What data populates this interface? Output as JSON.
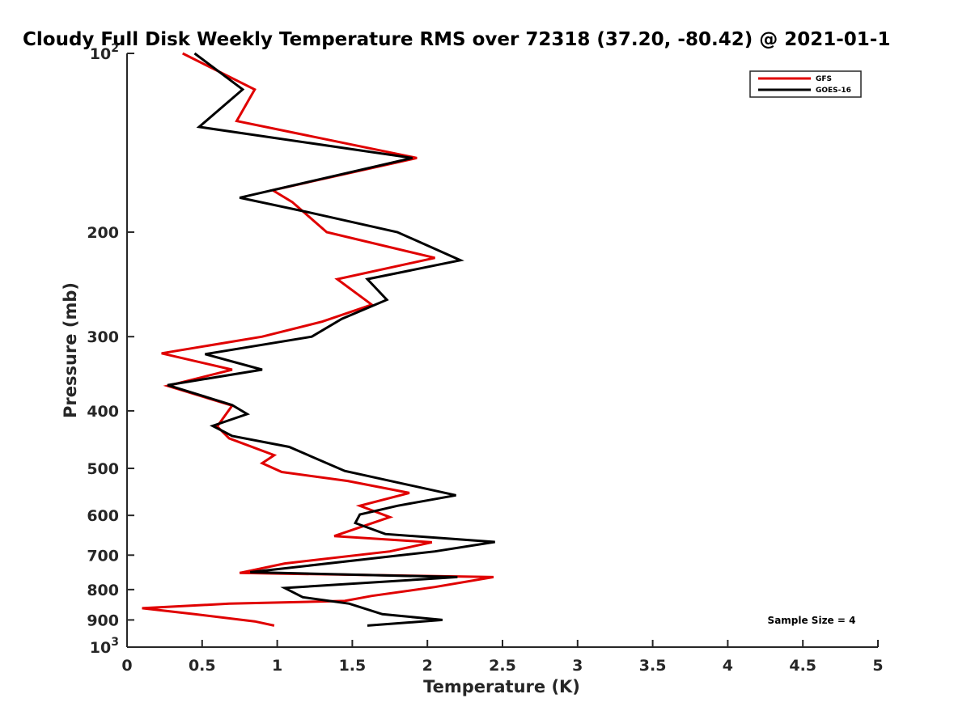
{
  "chart_data": {
    "type": "line",
    "title": "Cloudy Full Disk Weekly Temperature RMS over 72318 (37.20, -80.42) @ 2021-01-1",
    "xlabel": "Temperature (K)",
    "ylabel": "Pressure (mb)",
    "xlim": [
      0,
      5
    ],
    "ylim": [
      100,
      1000
    ],
    "y_scale": "log",
    "y_reversed": true,
    "grid": false,
    "legend_position": "top-right",
    "x_ticks": [
      0,
      0.5,
      1,
      1.5,
      2,
      2.5,
      3,
      3.5,
      4,
      4.5,
      5
    ],
    "x_tick_labels": [
      "0",
      "0.5",
      "1",
      "1.5",
      "2",
      "2.5",
      "3",
      "3.5",
      "4",
      "4.5",
      "5"
    ],
    "y_ticks": [
      {
        "value": 100,
        "base": "10",
        "exp": "2"
      },
      {
        "value": 200,
        "label": "200"
      },
      {
        "value": 300,
        "label": "300"
      },
      {
        "value": 400,
        "label": "400"
      },
      {
        "value": 500,
        "label": "500"
      },
      {
        "value": 600,
        "label": "600"
      },
      {
        "value": 700,
        "label": "700"
      },
      {
        "value": 800,
        "label": "800"
      },
      {
        "value": 900,
        "label": "900"
      },
      {
        "value": 1000,
        "base": "10",
        "exp": "3"
      }
    ],
    "series": [
      {
        "name": "GFS",
        "color": "#e00000",
        "points": [
          [
            0.37,
            100
          ],
          [
            0.85,
            115
          ],
          [
            0.73,
            130
          ],
          [
            1.93,
            150
          ],
          [
            0.97,
            170
          ],
          [
            1.1,
            178
          ],
          [
            1.33,
            200
          ],
          [
            2.05,
            221
          ],
          [
            1.4,
            240
          ],
          [
            1.63,
            265
          ],
          [
            1.3,
            283
          ],
          [
            0.9,
            300
          ],
          [
            0.23,
            320
          ],
          [
            0.7,
            341
          ],
          [
            0.27,
            363
          ],
          [
            0.7,
            392
          ],
          [
            0.6,
            425
          ],
          [
            0.68,
            445
          ],
          [
            0.98,
            475
          ],
          [
            0.9,
            490
          ],
          [
            1.03,
            507
          ],
          [
            1.47,
            525
          ],
          [
            1.88,
            550
          ],
          [
            1.55,
            578
          ],
          [
            1.75,
            604
          ],
          [
            1.38,
            650
          ],
          [
            2.03,
            666
          ],
          [
            1.75,
            690
          ],
          [
            1.05,
            723
          ],
          [
            0.75,
            750
          ],
          [
            2.44,
            762
          ],
          [
            2.05,
            792
          ],
          [
            1.63,
            820
          ],
          [
            1.45,
            836
          ],
          [
            0.68,
            845
          ],
          [
            0.1,
            860
          ],
          [
            0.45,
            880
          ],
          [
            0.85,
            905
          ],
          [
            0.98,
            920
          ]
        ]
      },
      {
        "name": "GOES-16",
        "color": "#000000",
        "points": [
          [
            0.45,
            100
          ],
          [
            0.77,
            115
          ],
          [
            0.48,
            133
          ],
          [
            1.9,
            150
          ],
          [
            0.75,
            175
          ],
          [
            1.2,
            185
          ],
          [
            1.8,
            200
          ],
          [
            2.22,
            223
          ],
          [
            1.6,
            240
          ],
          [
            1.73,
            260
          ],
          [
            1.43,
            280
          ],
          [
            1.23,
            300
          ],
          [
            0.52,
            321
          ],
          [
            0.9,
            341
          ],
          [
            0.27,
            362
          ],
          [
            0.7,
            391
          ],
          [
            0.8,
            405
          ],
          [
            0.57,
            424
          ],
          [
            0.7,
            441
          ],
          [
            1.08,
            460
          ],
          [
            1.45,
            505
          ],
          [
            2.19,
            555
          ],
          [
            1.8,
            578
          ],
          [
            1.55,
            598
          ],
          [
            1.52,
            618
          ],
          [
            1.72,
            645
          ],
          [
            2.45,
            665
          ],
          [
            2.05,
            690
          ],
          [
            0.82,
            748
          ],
          [
            2.2,
            762
          ],
          [
            1.05,
            795
          ],
          [
            1.17,
            824
          ],
          [
            1.48,
            845
          ],
          [
            1.7,
            880
          ],
          [
            2.1,
            900
          ],
          [
            1.6,
            920
          ]
        ]
      }
    ],
    "legend": [
      "GFS",
      "GOES-16"
    ],
    "annotation": "Sample Size = 4"
  }
}
